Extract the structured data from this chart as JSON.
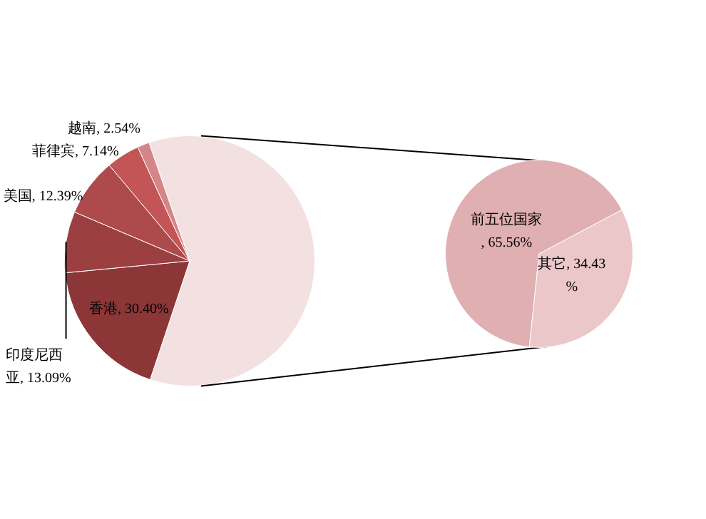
{
  "chart_data": [
    {
      "type": "pie",
      "categories": [
        null,
        "香港",
        "印度尼西亚",
        "美国",
        "菲律宾",
        "越南"
      ],
      "values": [
        99.99,
        30.4,
        13.09,
        12.39,
        7.14,
        2.54
      ],
      "value_labels": [
        null,
        ", 30.40%",
        ", 13.09%",
        ", 12.39%",
        ", 7.14%",
        ", 2.54%"
      ],
      "colors": [
        "#f3e1e2",
        "#8c3638",
        "#9b3f41",
        "#ad4a4c",
        "#c45556",
        "#d38587"
      ],
      "legend": false
    },
    {
      "type": "pie",
      "categories": [
        "前五位国家",
        "其它"
      ],
      "values": [
        65.56,
        34.43
      ],
      "value_labels": [
        ", 65.56%",
        ", 34.43%"
      ],
      "colors": [
        "#dfafb1",
        "#ebc7c9"
      ],
      "legend": false
    }
  ]
}
